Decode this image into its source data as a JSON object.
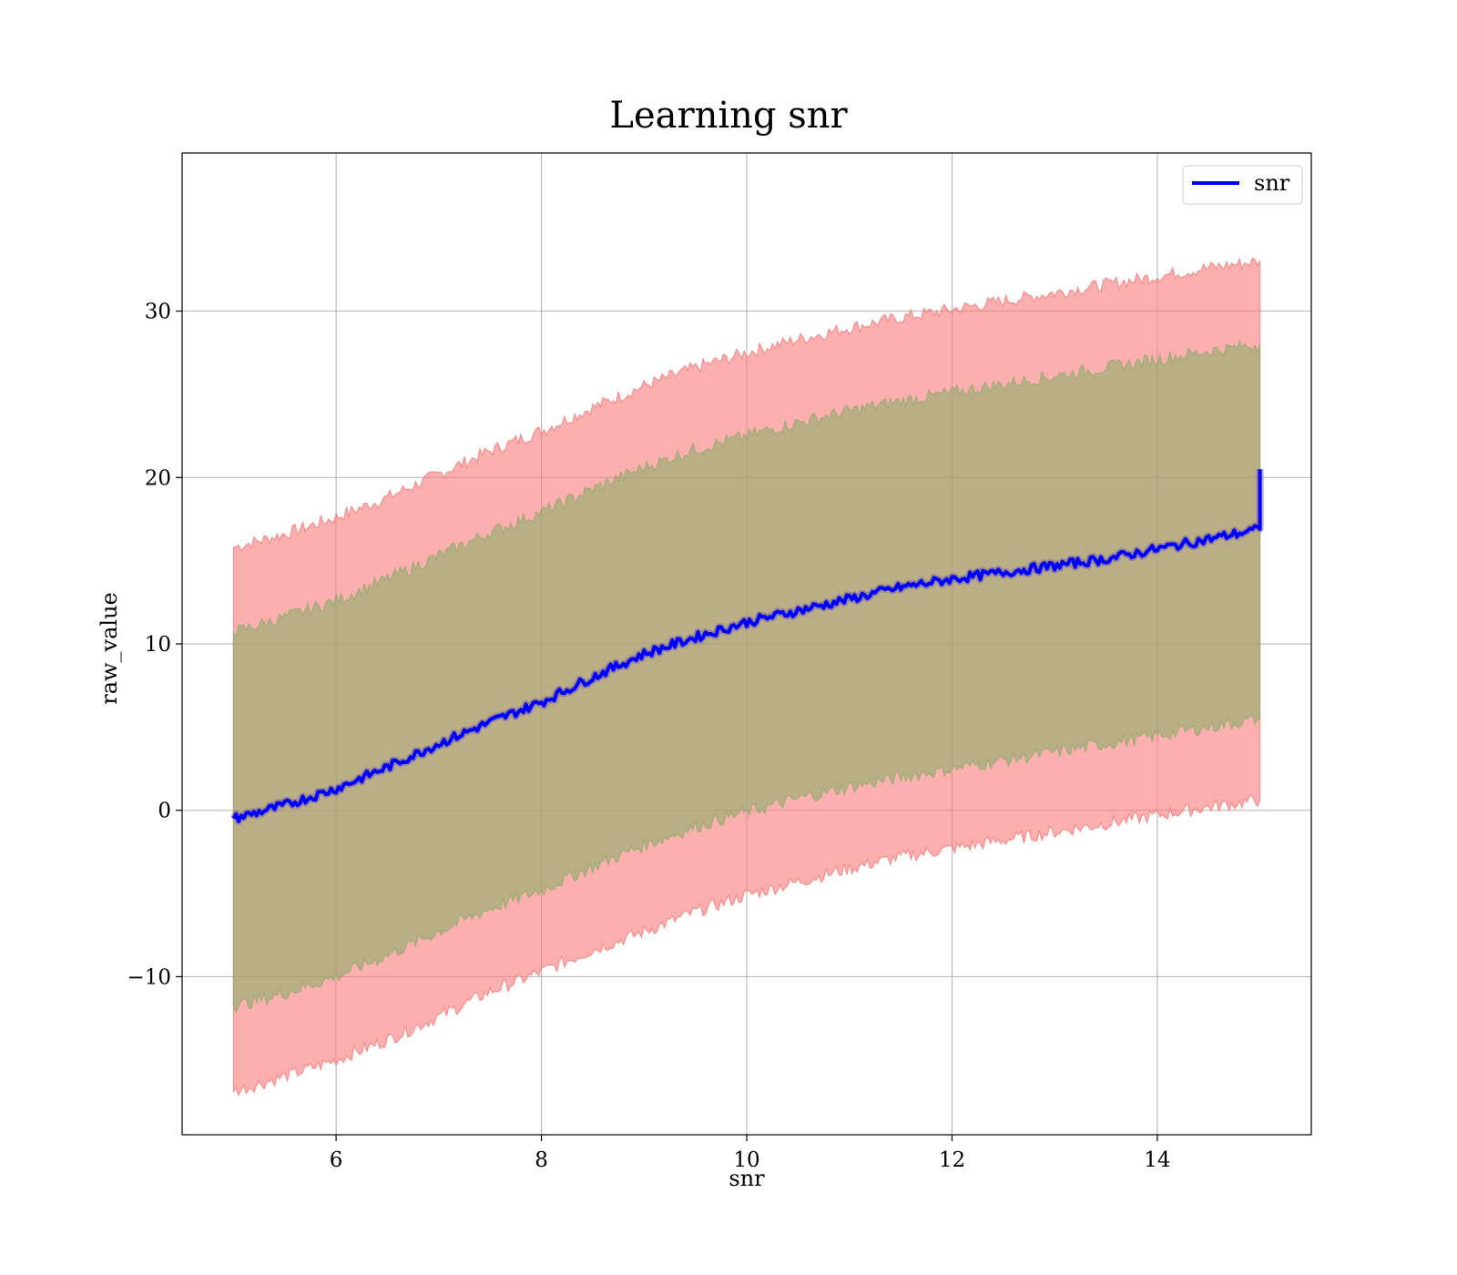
{
  "chart_data": {
    "type": "line",
    "title": "Learning snr",
    "xlabel": "snr",
    "ylabel": "raw_value",
    "xlim": [
      4.5,
      15.5
    ],
    "ylim": [
      -19.5,
      39.5
    ],
    "grid": true,
    "legend_placement": "top-right",
    "x_ticks": [
      6,
      8,
      10,
      12,
      14
    ],
    "y_ticks": [
      -10,
      0,
      10,
      20,
      30
    ],
    "x_tick_labels": [
      "6",
      "8",
      "10",
      "12",
      "14"
    ],
    "y_tick_labels": [
      "−10",
      "0",
      "10",
      "20",
      "30"
    ],
    "x": [
      5,
      5.5,
      6,
      6.5,
      7,
      7.5,
      8,
      8.5,
      9,
      9.5,
      10,
      10.5,
      11,
      11.5,
      12,
      12.5,
      13,
      13.5,
      14,
      14.5,
      15
    ],
    "series": [
      {
        "name": "snr",
        "color": "#0000ff",
        "values": [
          -0.5,
          0.3,
          1.3,
          2.6,
          4.0,
          5.3,
          6.5,
          8.0,
          9.4,
          10.4,
          11.3,
          12.0,
          12.7,
          13.4,
          13.9,
          14.3,
          14.7,
          15.1,
          15.7,
          16.3,
          16.9
        ],
        "end_spike": 20.5
      }
    ],
    "bands": [
      {
        "color": "#f87a7a",
        "upper": [
          15.8,
          16.6,
          17.6,
          18.8,
          20.2,
          21.6,
          22.8,
          24.2,
          25.5,
          26.6,
          27.5,
          28.3,
          29.0,
          29.6,
          30.1,
          30.6,
          31.1,
          31.6,
          32.1,
          32.6,
          33.0
        ],
        "lower": [
          -16.9,
          -16.0,
          -15.0,
          -13.8,
          -12.4,
          -10.9,
          -9.7,
          -8.4,
          -7.3,
          -6.1,
          -5.1,
          -4.3,
          -3.5,
          -2.8,
          -2.3,
          -1.8,
          -1.3,
          -0.8,
          -0.3,
          0.2,
          0.6
        ]
      },
      {
        "color": "#8fad6c",
        "upper": [
          10.7,
          11.6,
          12.6,
          13.9,
          15.3,
          16.7,
          17.9,
          19.3,
          20.6,
          21.7,
          22.5,
          23.3,
          24.0,
          24.6,
          25.1,
          25.6,
          26.1,
          26.6,
          27.1,
          27.6,
          28.0
        ],
        "lower": [
          -11.8,
          -11.0,
          -10.0,
          -8.7,
          -7.3,
          -5.9,
          -4.8,
          -3.4,
          -2.1,
          -1.0,
          -0.1,
          0.7,
          1.4,
          2.0,
          2.5,
          3.0,
          3.5,
          4.0,
          4.5,
          5.0,
          5.5
        ]
      }
    ]
  }
}
